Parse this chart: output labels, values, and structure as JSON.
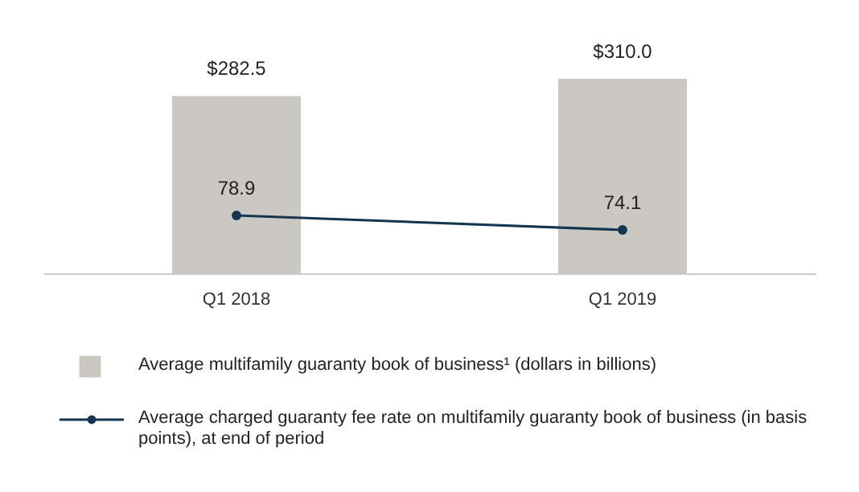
{
  "chart_data": {
    "type": "bar",
    "categories": [
      "Q1 2018",
      "Q1 2019"
    ],
    "series": [
      {
        "name": "Average multifamily guaranty book of business¹ (dollars in billions)",
        "color": "#cbc8c3",
        "values": [
          282.5,
          310.0
        ],
        "value_labels": [
          "$282.5",
          "$310.0"
        ]
      },
      {
        "name": "Average charged guaranty fee rate on multifamily guaranty book of business (in basis points), at end of period",
        "type": "line",
        "axis": "y2",
        "color": "#143550",
        "marker": "circle",
        "line_style": "solid",
        "values": [
          78.9,
          74.1
        ],
        "value_labels": [
          "78.9",
          "74.1"
        ]
      }
    ],
    "tick_labels": "x",
    "legend": "bottom"
  }
}
